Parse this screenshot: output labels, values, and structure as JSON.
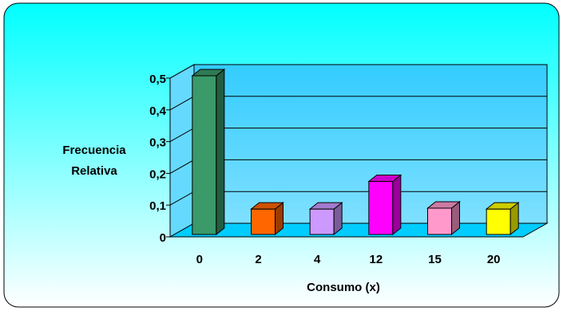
{
  "chart_data": {
    "type": "bar",
    "title": "",
    "xlabel": "Consumo (x)",
    "ylabel_lines": [
      "Frecuencia",
      "Relativa"
    ],
    "categories": [
      "0",
      "2",
      "4",
      "12",
      "15",
      "20"
    ],
    "values": [
      0.5,
      0.08,
      0.08,
      0.167,
      0.083,
      0.08
    ],
    "bar_colors": [
      "#3a9a6a",
      "#ff6600",
      "#cc99ff",
      "#ff00ff",
      "#ff99cc",
      "#ffff00"
    ],
    "yticks": [
      "0",
      "0,1",
      "0,2",
      "0,3",
      "0,4",
      "0,5"
    ],
    "ylim": [
      0,
      0.5
    ],
    "grid": true,
    "legend": "none"
  },
  "colors": {
    "frame_border": "#000000",
    "background_top": "#00ffff",
    "background_bottom": "#ffffff",
    "wall": "#33ccff",
    "floor": "#00ccff"
  }
}
